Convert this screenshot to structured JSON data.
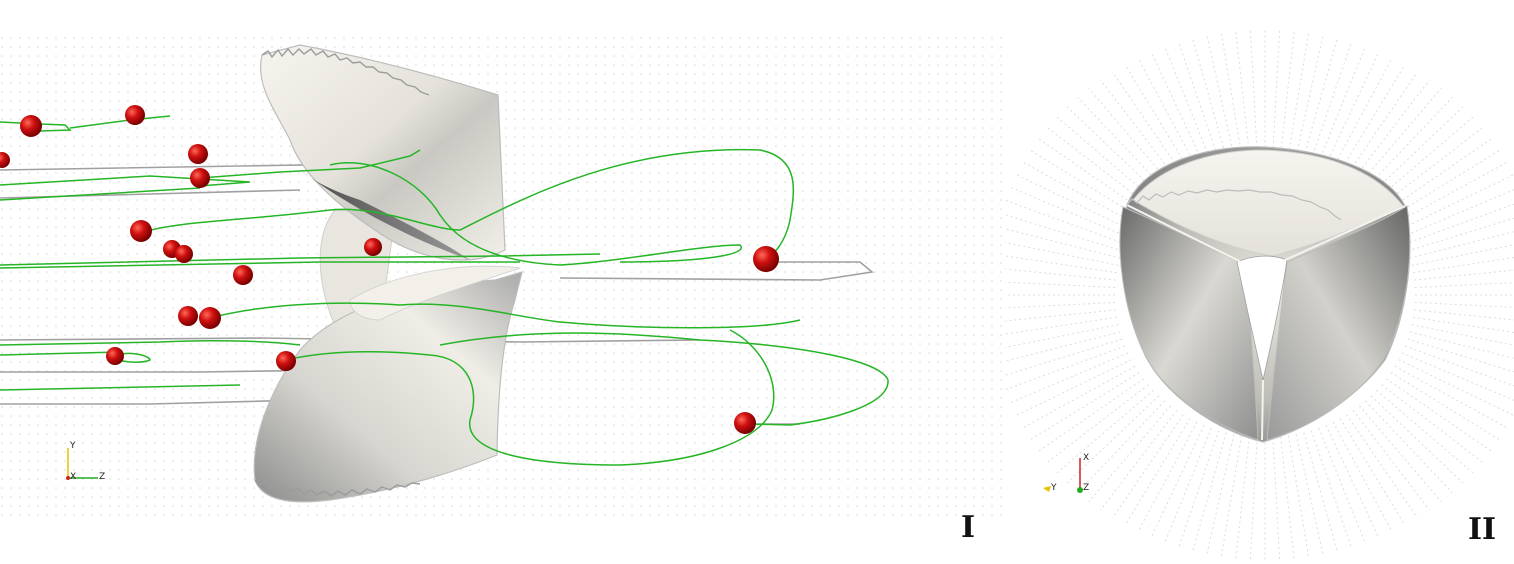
{
  "figure": {
    "panels": [
      {
        "label": "I",
        "view": "side view",
        "axes": [
          "Y",
          "X",
          "Z"
        ]
      },
      {
        "label": "II",
        "view": "axial view",
        "axes": [
          "X",
          "Y",
          "Z"
        ]
      }
    ]
  },
  "colors": {
    "background": "#ffffff",
    "mesh_dots": "#dcdcdc",
    "leaflet_light": "#f3f1ea",
    "leaflet_dark": "#7a7a7a",
    "streamline_green": "#22bb22",
    "streamline_gray": "#9a9a9a",
    "particle_red": "#cc1111",
    "label_color": "#111111"
  }
}
